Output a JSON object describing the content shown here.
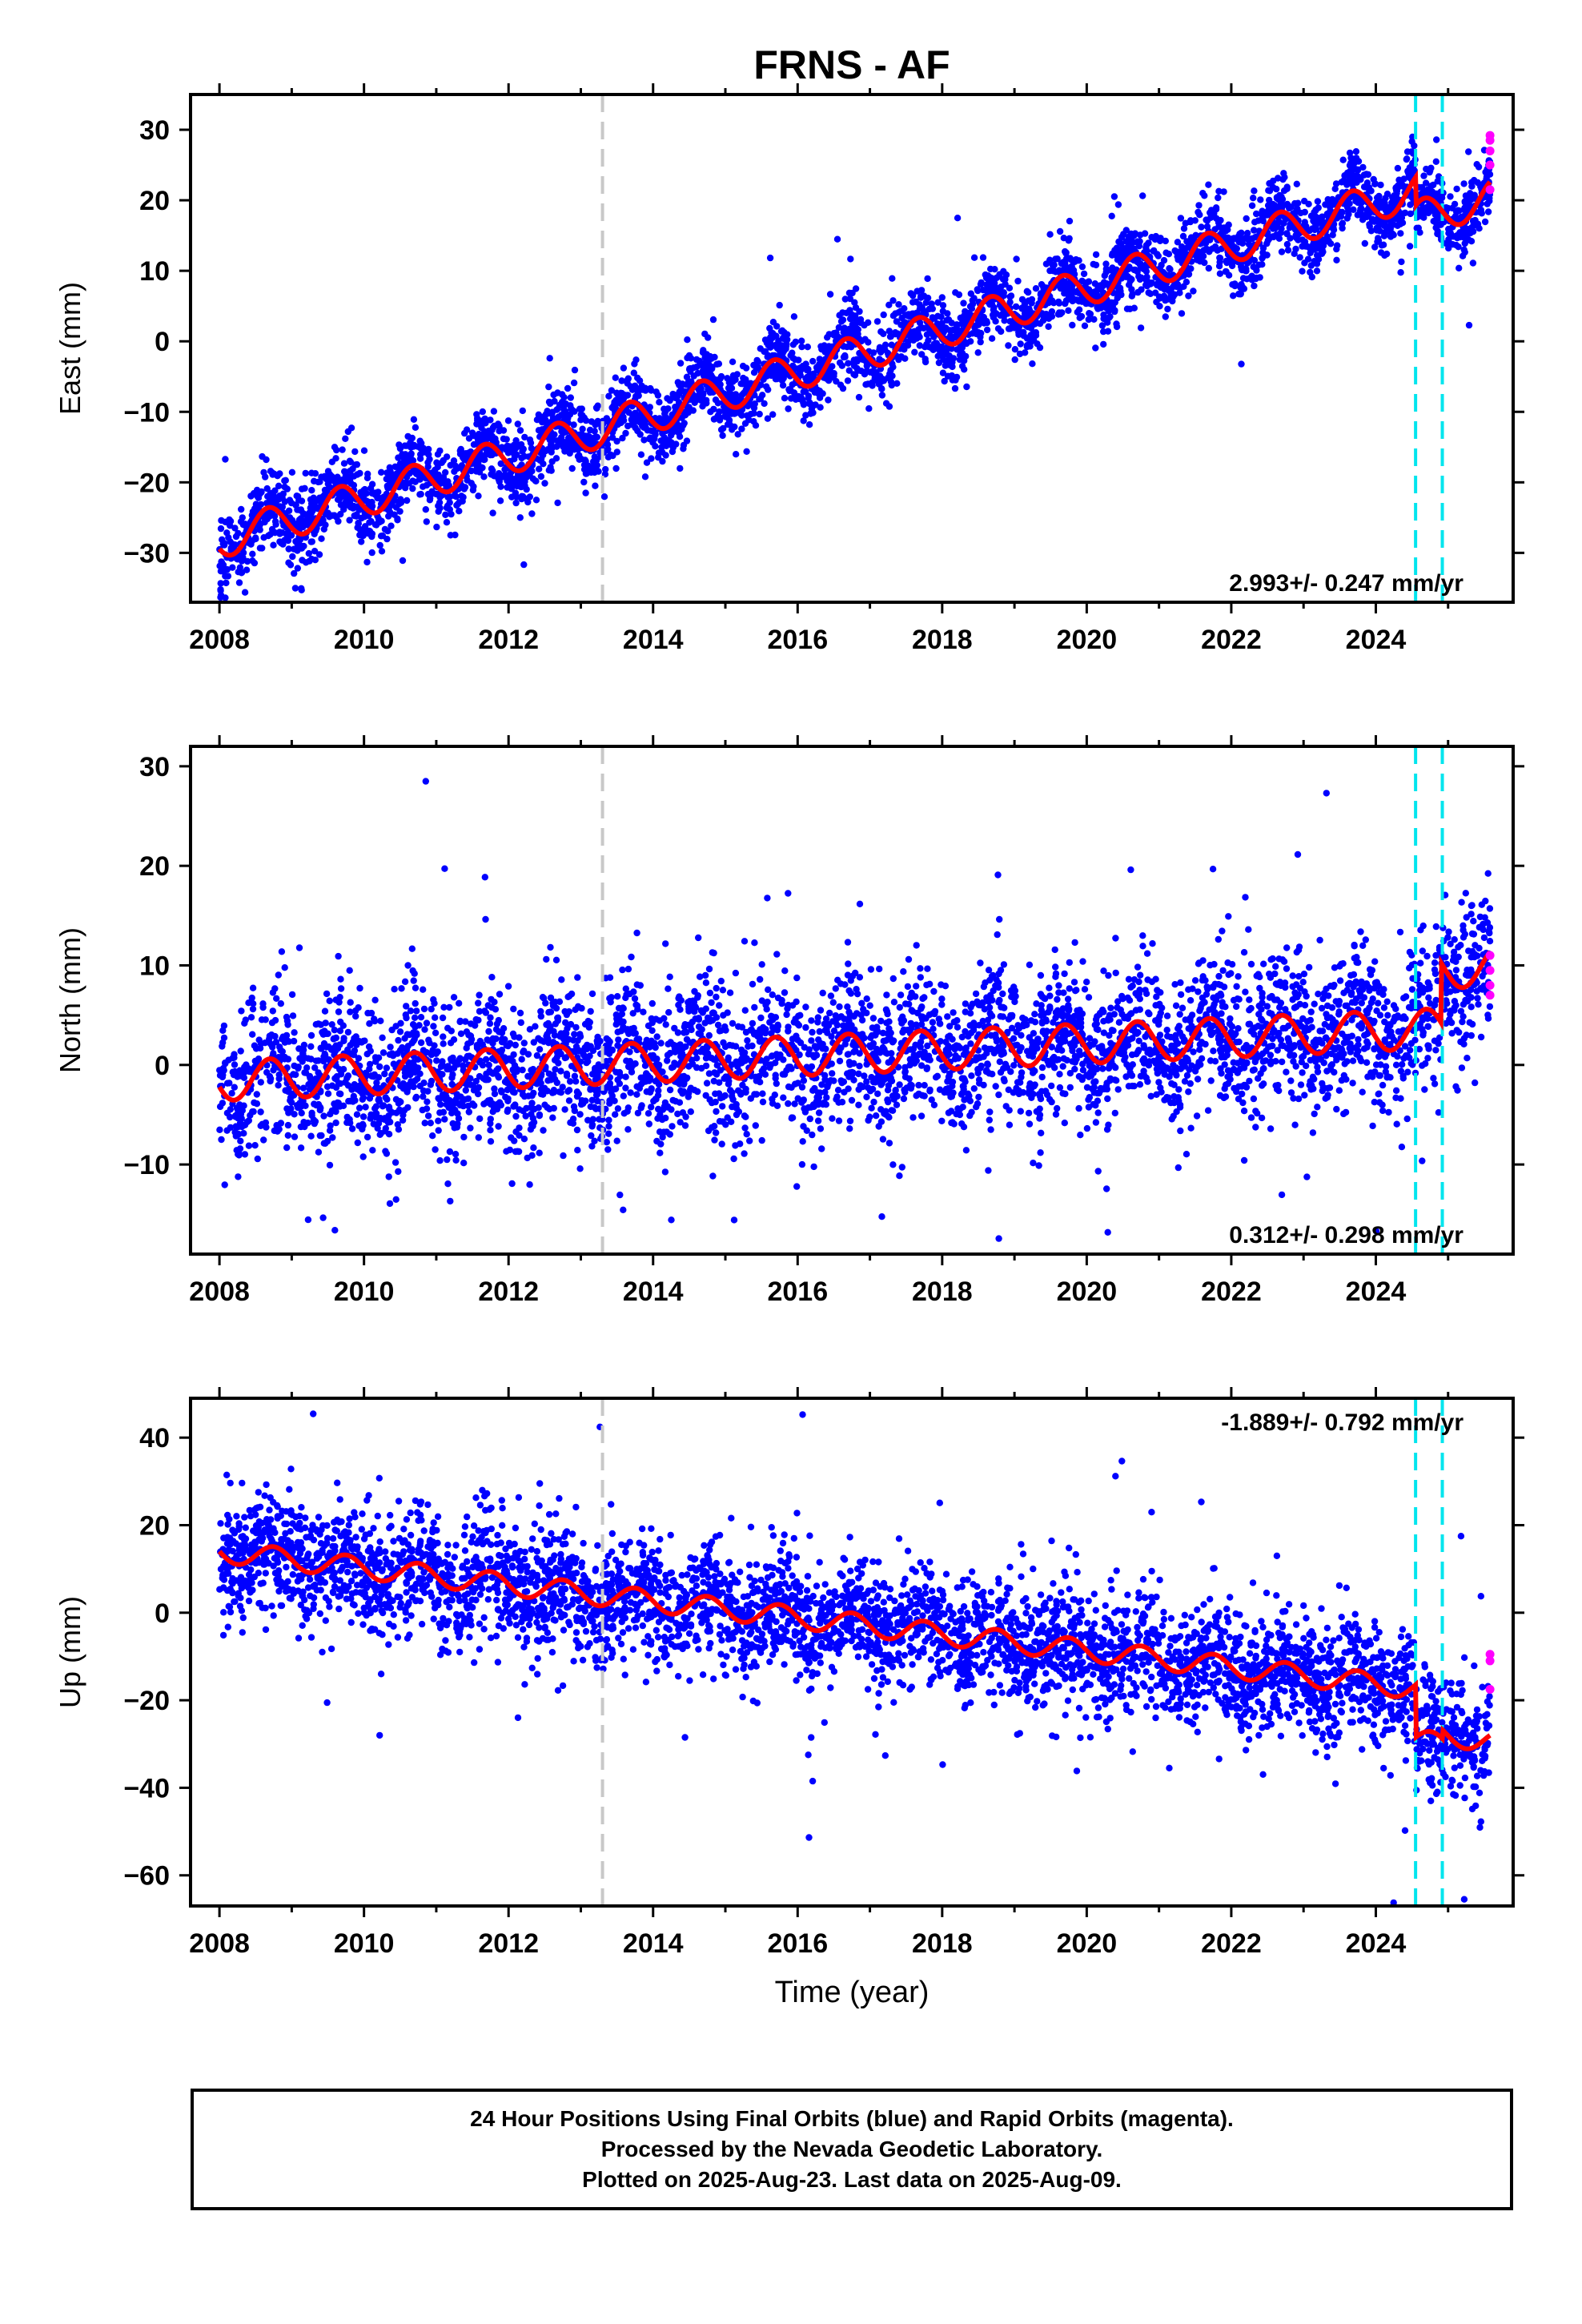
{
  "title": "FRNS - AF",
  "colors": {
    "final_orbits": "#0000ff",
    "rapid_orbits": "#ff00ff",
    "model": "#ff0000",
    "equipment_change": "#00e5ee",
    "other_event": "#c8c8c8"
  },
  "chart_data": [
    {
      "type": "scatter",
      "ylabel": "East (mm)",
      "xlabel": "",
      "xlim": [
        2007.6,
        2025.9
      ],
      "ylim": [
        -37,
        35
      ],
      "xticks": [
        2008,
        2010,
        2012,
        2014,
        2016,
        2018,
        2020,
        2022,
        2024
      ],
      "yticks": [
        -30,
        -20,
        -10,
        0,
        10,
        20,
        30
      ],
      "rate_annotation": "2.993+/- 0.247 mm/yr",
      "model": {
        "rate": 2.993,
        "offset_at_2008": -28.2,
        "annual_amp": 2.6,
        "phase_year": 0.42,
        "offsets": [
          {
            "t": 2024.55,
            "dy": -4.0
          },
          {
            "t": 2024.95,
            "dy": 0.0
          }
        ]
      },
      "scatter": {
        "n": 4200,
        "sigma": 2.6,
        "outlier_rate": 0.03,
        "seed": 11
      },
      "rapid_points": [
        [
          2025.58,
          27.0
        ],
        [
          2025.58,
          28.5
        ],
        [
          2025.58,
          25.0
        ],
        [
          2025.58,
          21.5
        ],
        [
          2025.58,
          29.2
        ]
      ],
      "events": [
        {
          "t": 2013.3,
          "kind": "other"
        },
        {
          "t": 2024.55,
          "kind": "equipment"
        },
        {
          "t": 2024.92,
          "kind": "equipment"
        }
      ]
    },
    {
      "type": "scatter",
      "ylabel": "North (mm)",
      "xlabel": "",
      "xlim": [
        2007.6,
        2025.9
      ],
      "ylim": [
        -19,
        32
      ],
      "xticks": [
        2008,
        2010,
        2012,
        2014,
        2016,
        2018,
        2020,
        2022,
        2024
      ],
      "yticks": [
        -10,
        0,
        10,
        20,
        30
      ],
      "rate_annotation": "0.312+/- 0.298 mm/yr",
      "model": {
        "rate": 0.312,
        "offset_at_2008": -1.6,
        "annual_amp": 2.0,
        "phase_year": 0.45,
        "offsets": [
          {
            "t": 2024.9,
            "dy": 6.0
          }
        ]
      },
      "scatter": {
        "n": 4200,
        "sigma": 3.6,
        "outlier_rate": 0.05,
        "seed": 23
      },
      "rapid_points": [
        [
          2025.58,
          11.0
        ],
        [
          2025.58,
          9.5
        ],
        [
          2025.58,
          8.0
        ],
        [
          2025.58,
          7.0
        ]
      ],
      "events": [
        {
          "t": 2013.3,
          "kind": "other"
        },
        {
          "t": 2024.55,
          "kind": "equipment"
        },
        {
          "t": 2024.92,
          "kind": "equipment"
        }
      ]
    },
    {
      "type": "scatter",
      "ylabel": "Up (mm)",
      "xlabel": "Time (year)",
      "xlim": [
        2007.6,
        2025.9
      ],
      "ylim": [
        -67,
        49
      ],
      "xticks": [
        2008,
        2010,
        2012,
        2014,
        2016,
        2018,
        2020,
        2022,
        2024
      ],
      "yticks": [
        -60,
        -40,
        -20,
        0,
        20,
        40
      ],
      "rate_annotation": "-1.889+/- 0.792 mm/yr",
      "model": {
        "rate": -1.889,
        "offset_at_2008": 14.0,
        "annual_amp": 2.5,
        "phase_year": 0.5,
        "offsets": [
          {
            "t": 2024.55,
            "dy": -12.0
          },
          {
            "t": 2024.92,
            "dy": 2.0
          }
        ]
      },
      "scatter": {
        "n": 4200,
        "sigma": 6.8,
        "outlier_rate": 0.04,
        "seed": 37
      },
      "rapid_points": [
        [
          2025.58,
          -11.0
        ],
        [
          2025.58,
          -17.5
        ],
        [
          2025.58,
          -9.5
        ]
      ],
      "events": [
        {
          "t": 2013.3,
          "kind": "other"
        },
        {
          "t": 2024.55,
          "kind": "equipment"
        },
        {
          "t": 2024.92,
          "kind": "equipment"
        }
      ]
    }
  ],
  "footer": {
    "line1": "24 Hour Positions Using Final Orbits (blue) and Rapid Orbits (magenta).",
    "line2": "Processed by the Nevada Geodetic Laboratory.",
    "line3": "Plotted on 2025-Aug-23. Last data on 2025-Aug-09."
  }
}
